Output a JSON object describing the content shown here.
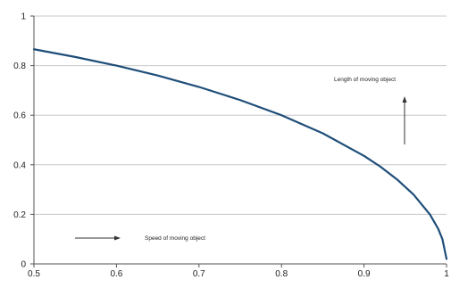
{
  "chart_data": {
    "type": "line",
    "title": "",
    "xlabel": "",
    "ylabel": "",
    "xlim": [
      0.5,
      1
    ],
    "ylim": [
      0,
      1
    ],
    "x_ticks": [
      "0.5",
      "0.6",
      "0.7",
      "0.8",
      "0.9",
      "1"
    ],
    "y_ticks": [
      "0",
      "0.2",
      "0.4",
      "0.6",
      "0.8",
      "1"
    ],
    "grid": "horizontal",
    "line_color": "#1f4e79",
    "series": [
      {
        "x": [
          0.5,
          0.55,
          0.6,
          0.65,
          0.7,
          0.75,
          0.8,
          0.85,
          0.9,
          0.92,
          0.94,
          0.96,
          0.98,
          0.99,
          0.995,
          1.0
        ],
        "values": [
          0.866,
          0.835,
          0.8,
          0.76,
          0.714,
          0.661,
          0.6,
          0.527,
          0.436,
          0.392,
          0.341,
          0.28,
          0.199,
          0.141,
          0.1,
          0.02
        ]
      }
    ],
    "annotations": [
      {
        "text": "Length of moving object",
        "arrow": "up"
      },
      {
        "text": "Speed of moving object",
        "arrow": "right"
      }
    ]
  }
}
